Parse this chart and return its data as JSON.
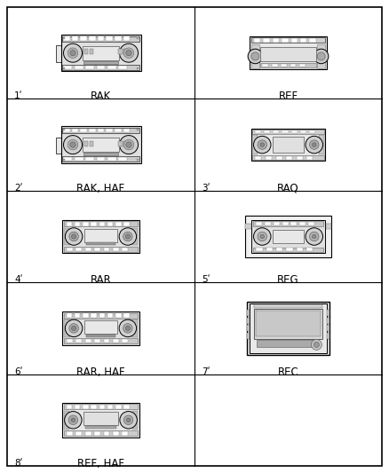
{
  "bg_color": "#ffffff",
  "line_color": "#000000",
  "gray_light": "#d8d8d8",
  "gray_med": "#aaaaaa",
  "gray_dark": "#666666",
  "items": [
    {
      "num": "1",
      "label": "RAK",
      "col": 0,
      "row": 0,
      "type": "RAK"
    },
    {
      "num": "",
      "label": "REF",
      "col": 1,
      "row": 0,
      "type": "REF"
    },
    {
      "num": "2",
      "label": "RAK, HAF",
      "col": 0,
      "row": 1,
      "type": "RAK"
    },
    {
      "num": "3",
      "label": "RAQ",
      "col": 1,
      "row": 1,
      "type": "RAQ"
    },
    {
      "num": "4",
      "label": "RAR",
      "col": 0,
      "row": 2,
      "type": "RAR"
    },
    {
      "num": "5",
      "label": "REG",
      "col": 1,
      "row": 2,
      "type": "REG"
    },
    {
      "num": "6",
      "label": "RAR, HAF",
      "col": 0,
      "row": 3,
      "type": "RAR"
    },
    {
      "num": "7",
      "label": "REC",
      "col": 1,
      "row": 3,
      "type": "REC"
    },
    {
      "num": "8",
      "label": "REF, HAF",
      "col": 0,
      "row": 4,
      "type": "REF2"
    }
  ],
  "figsize": [
    4.38,
    5.33
  ],
  "dpi": 100
}
